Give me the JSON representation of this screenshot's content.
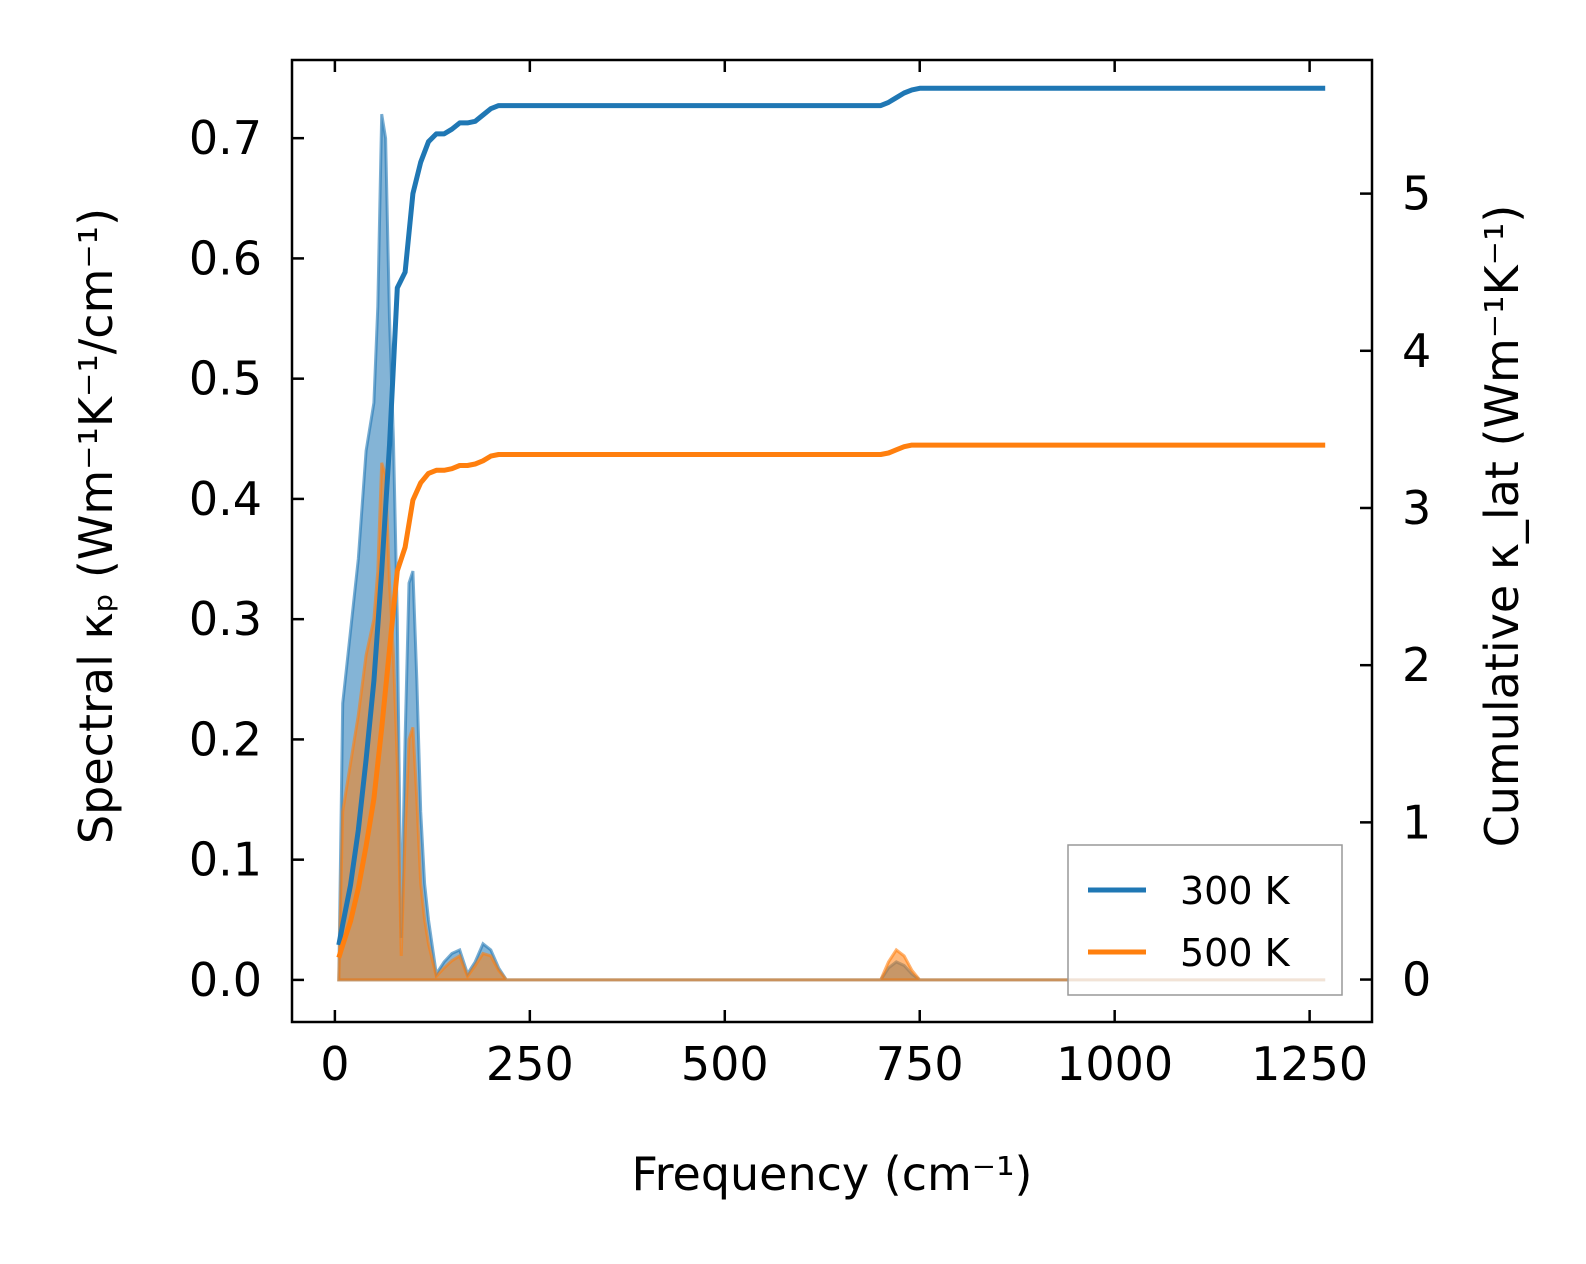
{
  "chart_data": {
    "type": "line",
    "xlabel": "Frequency (cm⁻¹)",
    "ylabel_left": "Spectral κₚ (Wm⁻¹K⁻¹/cm⁻¹)",
    "ylabel_right": "Cumulative κ_lat (Wm⁻¹K⁻¹)",
    "xlim": [
      -55,
      1330
    ],
    "ylim_left": [
      -0.035,
      0.765
    ],
    "ylim_right": [
      -0.27,
      5.85
    ],
    "x_ticks": [
      0,
      250,
      500,
      750,
      1000,
      1250
    ],
    "x_tick_labels": [
      "0",
      "250",
      "500",
      "750",
      "1000",
      "1250"
    ],
    "y_ticks_left": [
      0.0,
      0.1,
      0.2,
      0.3,
      0.4,
      0.5,
      0.6,
      0.7
    ],
    "y_tick_labels_left": [
      "0.0",
      "0.1",
      "0.2",
      "0.3",
      "0.4",
      "0.5",
      "0.6",
      "0.7"
    ],
    "y_ticks_right": [
      0,
      1,
      2,
      3,
      4,
      5
    ],
    "y_tick_labels_right": [
      "0",
      "1",
      "2",
      "3",
      "4",
      "5"
    ],
    "legend": {
      "placement": "lower-right"
    },
    "series": [
      {
        "name": "300 K",
        "color": "#1f77b4",
        "spectral": {
          "x": [
            5,
            10,
            20,
            30,
            40,
            50,
            55,
            60,
            65,
            70,
            75,
            80,
            85,
            90,
            95,
            100,
            105,
            110,
            115,
            120,
            130,
            140,
            150,
            160,
            170,
            180,
            190,
            200,
            210,
            220,
            700,
            710,
            720,
            730,
            740,
            750,
            1270
          ],
          "y": [
            0.0,
            0.23,
            0.29,
            0.35,
            0.44,
            0.48,
            0.56,
            0.72,
            0.7,
            0.55,
            0.45,
            0.3,
            0.035,
            0.2,
            0.33,
            0.34,
            0.25,
            0.14,
            0.08,
            0.05,
            0.005,
            0.015,
            0.022,
            0.025,
            0.005,
            0.015,
            0.03,
            0.025,
            0.01,
            0.0,
            0.0,
            0.01,
            0.015,
            0.012,
            0.005,
            0.0,
            0.0
          ]
        },
        "cumulative": {
          "x": [
            5,
            10,
            20,
            30,
            40,
            50,
            60,
            70,
            80,
            90,
            100,
            110,
            120,
            130,
            140,
            150,
            160,
            170,
            180,
            190,
            200,
            210,
            230,
            700,
            710,
            720,
            730,
            740,
            750,
            1270
          ],
          "y": [
            0.22,
            0.35,
            0.6,
            0.95,
            1.4,
            1.9,
            2.6,
            3.4,
            4.4,
            4.5,
            5.0,
            5.2,
            5.33,
            5.38,
            5.38,
            5.41,
            5.45,
            5.45,
            5.46,
            5.5,
            5.54,
            5.56,
            5.56,
            5.56,
            5.58,
            5.61,
            5.64,
            5.66,
            5.67,
            5.67
          ]
        }
      },
      {
        "name": "500 K",
        "color": "#ff7f0e",
        "spectral": {
          "x": [
            5,
            10,
            20,
            30,
            40,
            50,
            55,
            60,
            65,
            70,
            75,
            80,
            85,
            90,
            95,
            100,
            105,
            110,
            115,
            120,
            130,
            140,
            150,
            160,
            170,
            180,
            190,
            200,
            210,
            220,
            700,
            710,
            720,
            730,
            740,
            750,
            1270
          ],
          "y": [
            0.0,
            0.14,
            0.18,
            0.22,
            0.27,
            0.3,
            0.34,
            0.43,
            0.42,
            0.33,
            0.27,
            0.18,
            0.02,
            0.12,
            0.2,
            0.21,
            0.15,
            0.08,
            0.05,
            0.03,
            0.003,
            0.01,
            0.016,
            0.02,
            0.003,
            0.012,
            0.022,
            0.02,
            0.008,
            0.0,
            0.0,
            0.015,
            0.025,
            0.02,
            0.008,
            0.0,
            0.0
          ]
        },
        "cumulative": {
          "x": [
            5,
            10,
            20,
            30,
            40,
            50,
            60,
            70,
            80,
            90,
            100,
            110,
            120,
            130,
            140,
            150,
            160,
            170,
            180,
            190,
            200,
            210,
            230,
            700,
            710,
            720,
            730,
            740,
            750,
            1270
          ],
          "y": [
            0.14,
            0.22,
            0.37,
            0.58,
            0.85,
            1.15,
            1.6,
            2.1,
            2.6,
            2.75,
            3.05,
            3.16,
            3.22,
            3.24,
            3.24,
            3.25,
            3.27,
            3.27,
            3.28,
            3.3,
            3.33,
            3.34,
            3.34,
            3.34,
            3.35,
            3.37,
            3.39,
            3.4,
            3.4,
            3.4
          ]
        }
      }
    ]
  }
}
